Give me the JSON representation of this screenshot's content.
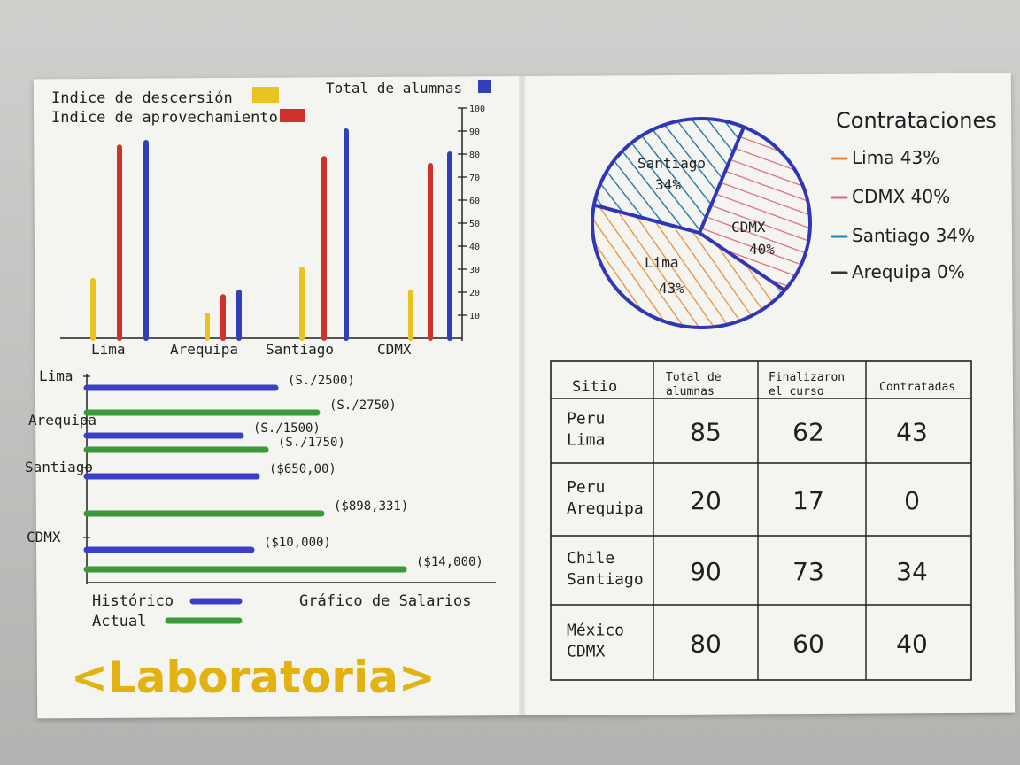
{
  "chart_data": [
    {
      "type": "bar",
      "categories": [
        "Lima",
        "Arequipa",
        "Santiago",
        "CDMX"
      ],
      "series": [
        {
          "name": "Indice de descersión",
          "color": "#e9c31f",
          "values": [
            25,
            10,
            30,
            20
          ]
        },
        {
          "name": "Indice de aprovechamiento",
          "color": "#d0322b",
          "values": [
            83,
            18,
            78,
            75
          ]
        },
        {
          "name": "Total de alumnas",
          "color": "#3140b8",
          "values": [
            85,
            20,
            90,
            80
          ]
        }
      ],
      "ylim": [
        0,
        100
      ],
      "y_ticks": [
        "10",
        "20",
        "30",
        "40",
        "50",
        "60",
        "70",
        "80",
        "90",
        "100"
      ],
      "legend": "top"
    },
    {
      "type": "bar",
      "orientation": "horizontal",
      "title": "Gráfico de Salarios",
      "categories": [
        "Lima",
        "Arequipa",
        "Santiago",
        "CDMX"
      ],
      "series": [
        {
          "name": "Histórico",
          "color": "#3a40c6",
          "values": [
            2500,
            1500,
            650,
            10000
          ],
          "labels": [
            "(S./2500)",
            "(S./1500)",
            "($650,00)",
            "($10,000)"
          ]
        },
        {
          "name": "Actual",
          "color": "#3c9a3c",
          "values": [
            2750,
            1750,
            898331,
            14000
          ],
          "labels": [
            "(S./2750)",
            "(S./1750)",
            "($898,331)",
            "($14,000)"
          ]
        }
      ],
      "legend": "bottom-left"
    },
    {
      "type": "pie",
      "title": "Contrataciones",
      "slices": [
        {
          "label": "Lima",
          "pct_label": "43%",
          "value": 43,
          "color": "#ea8a2e"
        },
        {
          "label": "CDMX",
          "pct_label": "40%",
          "value": 40,
          "color": "#e06a78"
        },
        {
          "label": "Santiago",
          "pct_label": "34%",
          "value": 34,
          "color": "#2a7fb0"
        },
        {
          "label": "Arequipa",
          "pct_label": "0%",
          "value": 0,
          "color": "#333333"
        }
      ],
      "legend_items": [
        "Lima 43%",
        "CDMX 40%",
        "Santiago 34%",
        "Arequipa 0%"
      ],
      "legend": "right"
    },
    {
      "type": "table",
      "columns": [
        "Sitio",
        "Total de alumnas",
        "Finalizaron el curso",
        "Contratadas"
      ],
      "rows": [
        {
          "site_country": "Peru",
          "site_city": "Lima",
          "total": "85",
          "finished": "62",
          "hired": "43"
        },
        {
          "site_country": "Peru",
          "site_city": "Arequipa",
          "total": "20",
          "finished": "17",
          "hired": "0"
        },
        {
          "site_country": "Chile",
          "site_city": "Santiago",
          "total": "90",
          "finished": "73",
          "hired": "34"
        },
        {
          "site_country": "México",
          "site_city": "CDMX",
          "total": "80",
          "finished": "60",
          "hired": "40"
        }
      ]
    }
  ],
  "brand": "<Laboratoria>"
}
